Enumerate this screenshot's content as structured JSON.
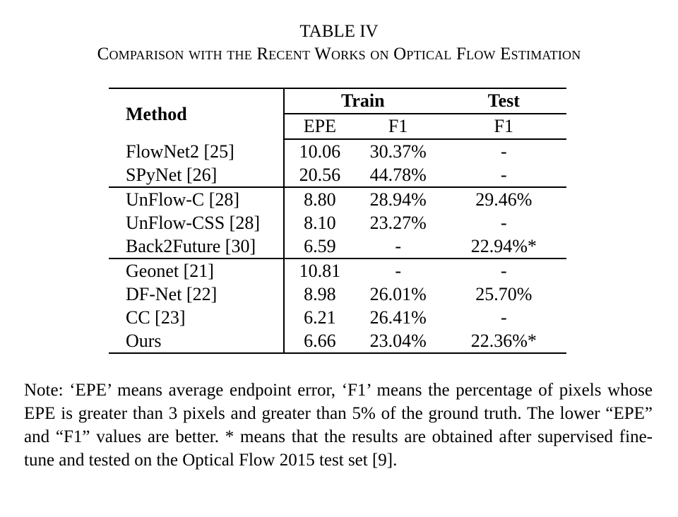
{
  "title": "TABLE IV",
  "subtitle": "Comparison with the Recent Works on Optical Flow Estimation",
  "table": {
    "header": {
      "method": "Method",
      "train": "Train",
      "test": "Test",
      "train_epe": "EPE",
      "train_f1": "F1",
      "test_f1": "F1"
    },
    "rows": [
      {
        "method": "FlowNet2 [25]",
        "epe": "10.06",
        "f1": "30.37%",
        "test_f1": "-",
        "bold": []
      },
      {
        "method": "SPyNet [26]",
        "epe": "20.56",
        "f1": "44.78%",
        "test_f1": "-",
        "bold": []
      },
      {
        "method": "UnFlow-C [28]",
        "epe": "8.80",
        "f1": "28.94%",
        "test_f1": "29.46%",
        "bold": []
      },
      {
        "method": "UnFlow-CSS [28]",
        "epe": "8.10",
        "f1": "23.27%",
        "test_f1": "-",
        "bold": [
          "f1"
        ]
      },
      {
        "method": "Back2Future [30]",
        "epe": "6.59",
        "f1": "-",
        "test_f1": "22.94%*",
        "bold": [
          "epe",
          "test_f1"
        ]
      },
      {
        "method": "Geonet [21]",
        "epe": "10.81",
        "f1": "-",
        "test_f1": "-",
        "bold": []
      },
      {
        "method": "DF-Net [22]",
        "epe": "8.98",
        "f1": "26.01%",
        "test_f1": "25.70%",
        "bold": []
      },
      {
        "method": "CC [23]",
        "epe": "6.21",
        "f1": "26.41%",
        "test_f1": "-",
        "bold": [
          "epe"
        ]
      },
      {
        "method": "Ours",
        "epe": "6.66",
        "f1": "23.04%",
        "test_f1": "22.36%*",
        "bold": [
          "f1",
          "test_f1"
        ]
      }
    ]
  },
  "note": "Note: ‘EPE’ means average endpoint error, ‘F1’ means the percentage of pixels whose EPE is greater than 3 pixels and greater than 5% of the ground truth. The lower “EPE” and “F1” values are better. * means that the results are obtained after supervised fine-tune and tested on the Optical Flow 2015 test set [9]."
}
